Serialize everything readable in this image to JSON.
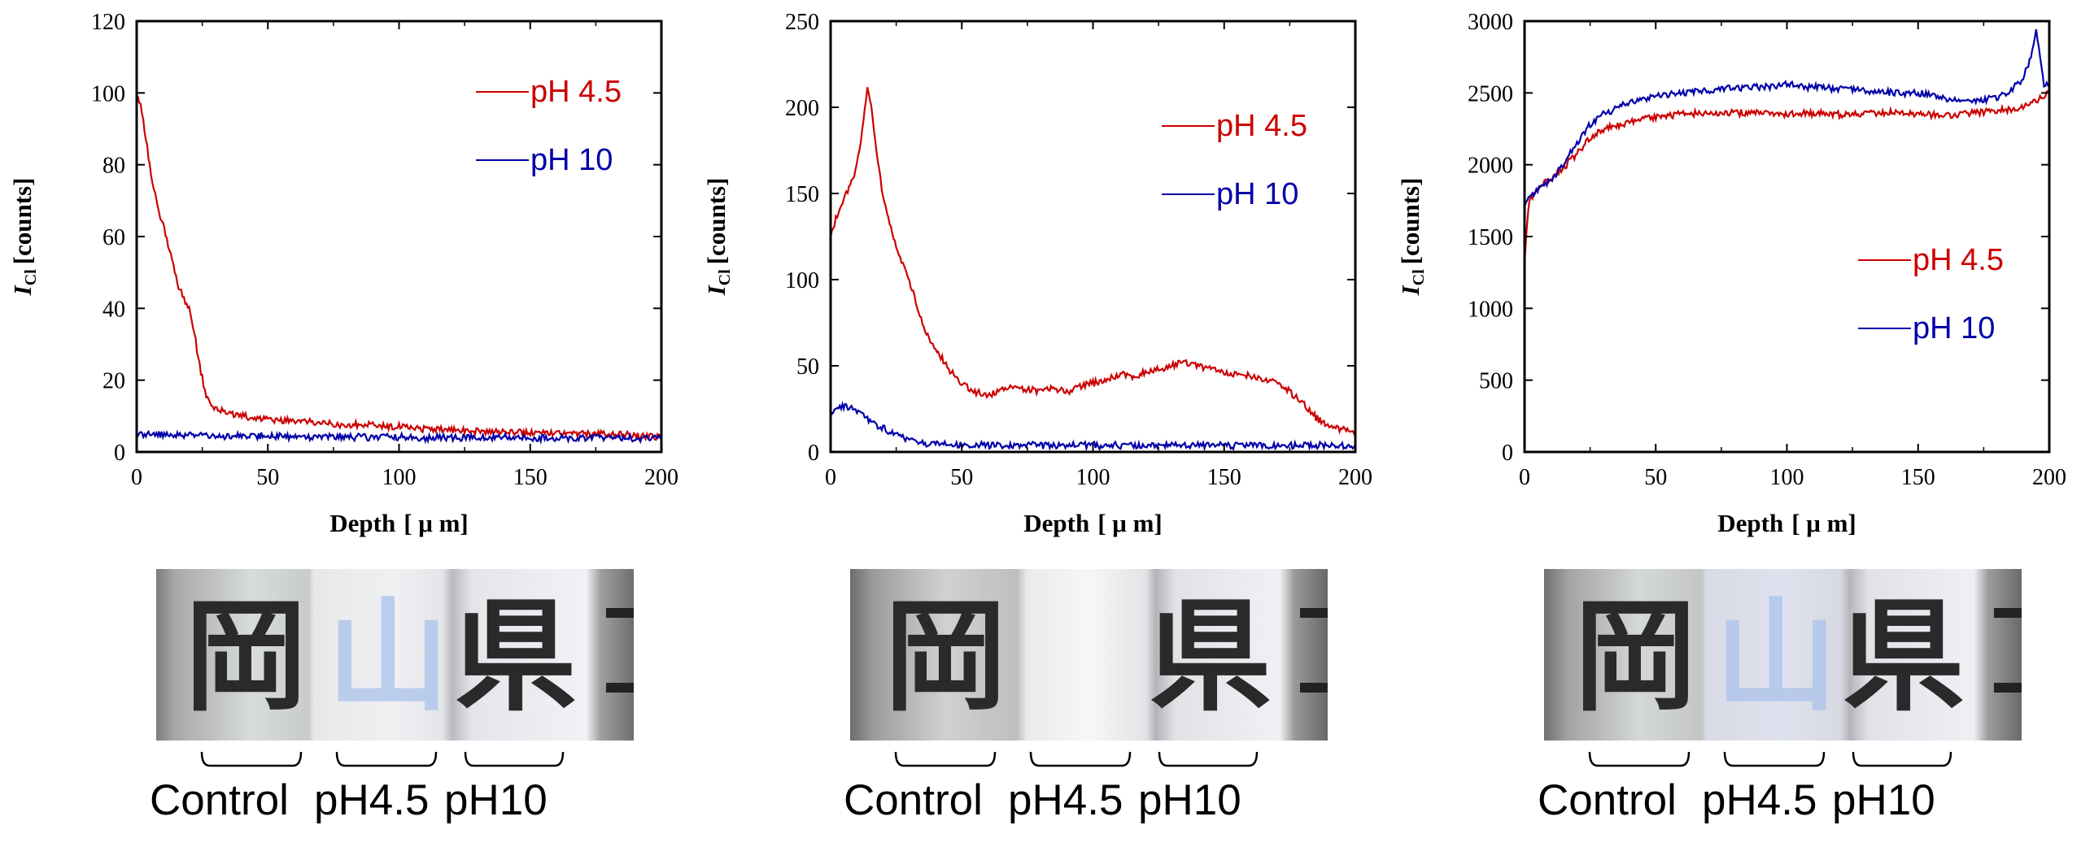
{
  "chart_data": [
    {
      "type": "line",
      "xlabel_main": "Depth",
      "xlabel_unit": "[ μ m]",
      "ylabel_symbol": "I",
      "ylabel_subscript": "Cl",
      "ylabel_unit": "[counts]",
      "xlim": [
        0,
        200
      ],
      "ylim": [
        0,
        120
      ],
      "xticks": [
        0,
        50,
        100,
        150,
        200
      ],
      "yticks": [
        0,
        20,
        40,
        60,
        80,
        100,
        120
      ],
      "legend_position": "top-right",
      "series": [
        {
          "name": "pH 4.5",
          "color": "#cc0000",
          "x": [
            0,
            2,
            4,
            6,
            8,
            10,
            12,
            14,
            16,
            18,
            20,
            22,
            24,
            26,
            28,
            30,
            40,
            50,
            60,
            70,
            80,
            90,
            100,
            110,
            120,
            130,
            140,
            150,
            160,
            170,
            180,
            190,
            200
          ],
          "y": [
            100,
            95,
            85,
            75,
            68,
            63,
            58,
            52,
            46,
            43,
            40,
            33,
            24,
            17,
            13,
            12,
            10,
            9,
            8.5,
            8,
            7.5,
            7.5,
            7,
            6.5,
            6,
            6,
            5.5,
            5.5,
            5.5,
            5,
            5,
            4.5,
            4
          ]
        },
        {
          "name": "pH 10",
          "color": "#0000aa",
          "x": [
            0,
            10,
            20,
            30,
            40,
            50,
            60,
            70,
            80,
            90,
            100,
            110,
            120,
            130,
            140,
            150,
            160,
            170,
            180,
            190,
            200
          ],
          "y": [
            5,
            5,
            4.8,
            4.6,
            4.5,
            4.4,
            4.3,
            4.2,
            4.2,
            4.1,
            4.1,
            4,
            4,
            4,
            4,
            4,
            4,
            3.9,
            3.9,
            3.8,
            3.8
          ]
        }
      ]
    },
    {
      "type": "line",
      "xlabel_main": "Depth",
      "xlabel_unit": "[ μ m]",
      "ylabel_symbol": "I",
      "ylabel_subscript": "Cl",
      "ylabel_unit": "[counts]",
      "xlim": [
        0,
        200
      ],
      "ylim": [
        0,
        250
      ],
      "xticks": [
        0,
        50,
        100,
        150,
        200
      ],
      "yticks": [
        0,
        50,
        100,
        150,
        200,
        250
      ],
      "legend_position": "top-right",
      "series": [
        {
          "name": "pH 4.5",
          "color": "#cc0000",
          "x": [
            0,
            3,
            6,
            9,
            12,
            14,
            16,
            18,
            20,
            22,
            25,
            28,
            30,
            33,
            36,
            40,
            45,
            50,
            55,
            60,
            65,
            70,
            75,
            80,
            85,
            90,
            95,
            100,
            105,
            110,
            115,
            120,
            125,
            130,
            135,
            140,
            145,
            150,
            155,
            160,
            165,
            170,
            175,
            180,
            185,
            190,
            195,
            200
          ],
          "y": [
            125,
            140,
            150,
            160,
            185,
            212,
            195,
            170,
            148,
            135,
            120,
            108,
            100,
            85,
            70,
            60,
            48,
            40,
            35,
            33,
            35,
            38,
            36,
            35,
            37,
            35,
            38,
            40,
            42,
            45,
            44,
            46,
            48,
            50,
            52,
            50,
            48,
            46,
            45,
            44,
            42,
            40,
            35,
            28,
            20,
            15,
            13,
            12
          ]
        },
        {
          "name": "pH 10",
          "color": "#0000aa",
          "x": [
            0,
            3,
            6,
            9,
            12,
            15,
            20,
            25,
            30,
            35,
            40,
            50,
            60,
            80,
            100,
            120,
            140,
            160,
            180,
            200
          ],
          "y": [
            22,
            26,
            27,
            25,
            22,
            18,
            14,
            10,
            7,
            5,
            4.5,
            4,
            4,
            3.8,
            3.8,
            3.8,
            3.8,
            3.8,
            3.8,
            3.8
          ]
        }
      ]
    },
    {
      "type": "line",
      "xlabel_main": "Depth",
      "xlabel_unit": "[ μ m]",
      "ylabel_symbol": "I",
      "ylabel_subscript": "Cl",
      "ylabel_unit": "[counts]",
      "xlim": [
        0,
        200
      ],
      "ylim": [
        0,
        3000
      ],
      "xticks": [
        0,
        50,
        100,
        150,
        200
      ],
      "yticks": [
        0,
        500,
        1000,
        1500,
        2000,
        2500,
        3000
      ],
      "legend_position": "center-right",
      "series": [
        {
          "name": "pH 4.5",
          "color": "#cc0000",
          "x": [
            0,
            1,
            2,
            4,
            6,
            8,
            10,
            15,
            20,
            25,
            30,
            40,
            50,
            60,
            70,
            80,
            90,
            100,
            110,
            120,
            130,
            140,
            150,
            160,
            170,
            180,
            190,
            195,
            200
          ],
          "y": [
            1300,
            1600,
            1750,
            1820,
            1860,
            1880,
            1900,
            1980,
            2080,
            2180,
            2250,
            2300,
            2330,
            2350,
            2360,
            2360,
            2360,
            2350,
            2360,
            2350,
            2360,
            2360,
            2350,
            2340,
            2360,
            2370,
            2400,
            2450,
            2500
          ]
        },
        {
          "name": "pH 10",
          "color": "#0000aa",
          "x": [
            0,
            2,
            4,
            6,
            8,
            10,
            15,
            20,
            25,
            30,
            40,
            50,
            60,
            70,
            80,
            90,
            100,
            110,
            120,
            130,
            140,
            150,
            160,
            170,
            180,
            185,
            190,
            193,
            195,
            197,
            198,
            200
          ],
          "y": [
            1700,
            1770,
            1810,
            1840,
            1870,
            1900,
            2000,
            2150,
            2280,
            2350,
            2430,
            2480,
            2500,
            2520,
            2540,
            2540,
            2560,
            2540,
            2530,
            2520,
            2500,
            2500,
            2460,
            2440,
            2470,
            2520,
            2600,
            2750,
            2950,
            2700,
            2550,
            2550
          ]
        }
      ]
    }
  ],
  "photos": [
    {
      "labels": [
        "Control",
        "pH4.5",
        "pH10"
      ],
      "characters": [
        "岡",
        "山",
        "県"
      ]
    },
    {
      "labels": [
        "Control",
        "pH4.5",
        "pH10"
      ],
      "characters": [
        "岡",
        "",
        "県"
      ]
    },
    {
      "labels": [
        "Control",
        "pH4.5",
        "pH10"
      ],
      "characters": [
        "岡",
        "山",
        "県"
      ]
    }
  ],
  "colors": {
    "ph45": "#cc0000",
    "ph10": "#0000aa",
    "ink": "#2a2a2a",
    "faded_ink": "#a9c1ea"
  }
}
